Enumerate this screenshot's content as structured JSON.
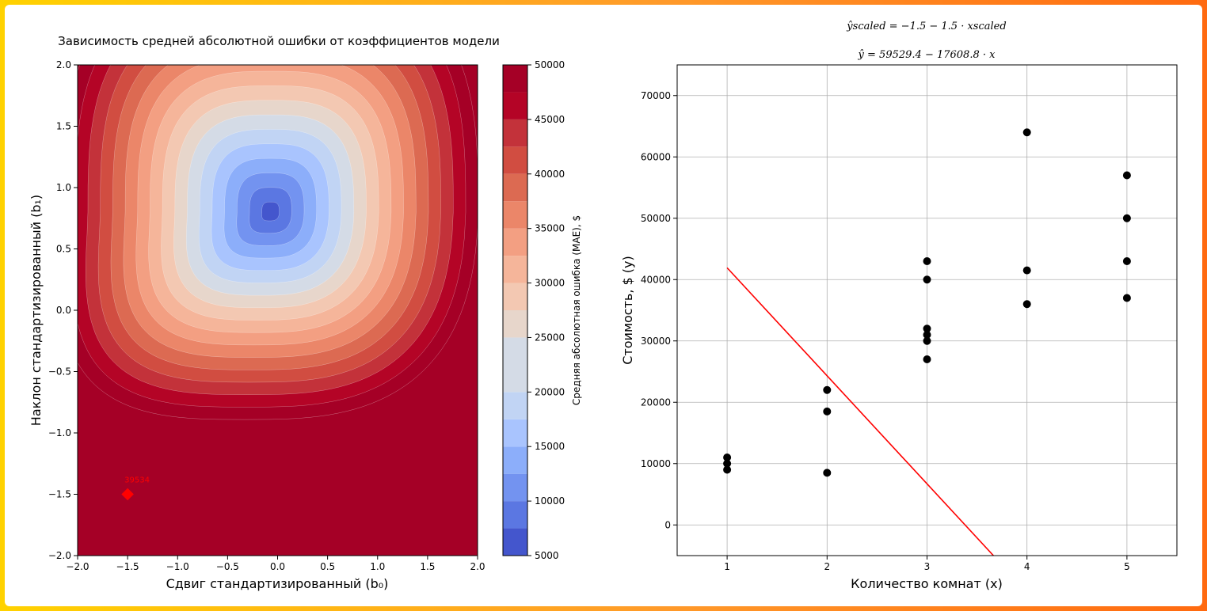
{
  "chart_data": [
    {
      "type": "contour",
      "title": "Зависимость средней абсолютной ошибки от коэффициентов модели",
      "xlabel": "Сдвиг стандартизированный (b₀)",
      "ylabel": "Наклон стандартизированный (b₁)",
      "xlim": [
        -2.0,
        2.0
      ],
      "ylim": [
        -2.0,
        2.0
      ],
      "x_ticks": [
        "−2.0",
        "−1.5",
        "−1.0",
        "−0.5",
        "0.0",
        "0.5",
        "1.0",
        "1.5",
        "2.0"
      ],
      "y_ticks": [
        "−2.0",
        "−1.5",
        "−1.0",
        "−0.5",
        "0.0",
        "0.5",
        "1.0",
        "1.5",
        "2.0"
      ],
      "colormap": "coolwarm",
      "minimum": {
        "b0": -0.07,
        "b1": 0.8
      },
      "colorbar": {
        "label": "Средняя абсолютная ошибка (MAE), $",
        "ticks": [
          "5000",
          "10000",
          "15000",
          "20000",
          "25000",
          "30000",
          "35000",
          "40000",
          "45000",
          "50000"
        ],
        "levels": [
          5000,
          7500,
          10000,
          12500,
          15000,
          17500,
          20000,
          25000,
          27500,
          30000,
          32500,
          35000,
          37500,
          40000,
          42500,
          45000,
          47500,
          50000
        ],
        "colors": [
          "#4456cd",
          "#5b77e2",
          "#7393f0",
          "#8caefa",
          "#a9c4fe",
          "#c1d4f4",
          "#d4dbe6",
          "#e7d6cb",
          "#f3c8b2",
          "#f5b59a",
          "#f39f82",
          "#eb8669",
          "#dc6a52",
          "#d14d41",
          "#c3323a",
          "#b40426",
          "#a50026"
        ]
      },
      "marker": {
        "b0": -1.5,
        "b1": -1.5,
        "label": "39534",
        "color": "#ff0000"
      }
    },
    {
      "type": "scatter",
      "title_line1": "ŷscaled = −1.5 − 1.5 · xscaled",
      "title_line2": "ŷ = 59529.4 − 17608.8 · x",
      "xlabel": "Количество комнат (x)",
      "ylabel": "Стоимость, $ (y)",
      "xlim": [
        0.5,
        5.5
      ],
      "ylim": [
        -5000,
        75000
      ],
      "x_ticks": [
        "1",
        "2",
        "3",
        "4",
        "5"
      ],
      "y_ticks": [
        "0",
        "10000",
        "20000",
        "30000",
        "40000",
        "50000",
        "60000",
        "70000"
      ],
      "grid": true,
      "points": [
        {
          "x": 1,
          "y": 11000
        },
        {
          "x": 1,
          "y": 10000
        },
        {
          "x": 1,
          "y": 9000
        },
        {
          "x": 2,
          "y": 22000
        },
        {
          "x": 2,
          "y": 18500
        },
        {
          "x": 2,
          "y": 8500
        },
        {
          "x": 3,
          "y": 43000
        },
        {
          "x": 3,
          "y": 40000
        },
        {
          "x": 3,
          "y": 32000
        },
        {
          "x": 3,
          "y": 31000
        },
        {
          "x": 3,
          "y": 30000
        },
        {
          "x": 3,
          "y": 27000
        },
        {
          "x": 4,
          "y": 64000
        },
        {
          "x": 4,
          "y": 41500
        },
        {
          "x": 4,
          "y": 36000
        },
        {
          "x": 5,
          "y": 57000
        },
        {
          "x": 5,
          "y": 50000
        },
        {
          "x": 5,
          "y": 43000
        },
        {
          "x": 5,
          "y": 37000
        }
      ],
      "line": {
        "intercept": 59529.4,
        "slope": -17608.8,
        "x_start": 1,
        "color": "#ff0000"
      }
    }
  ]
}
